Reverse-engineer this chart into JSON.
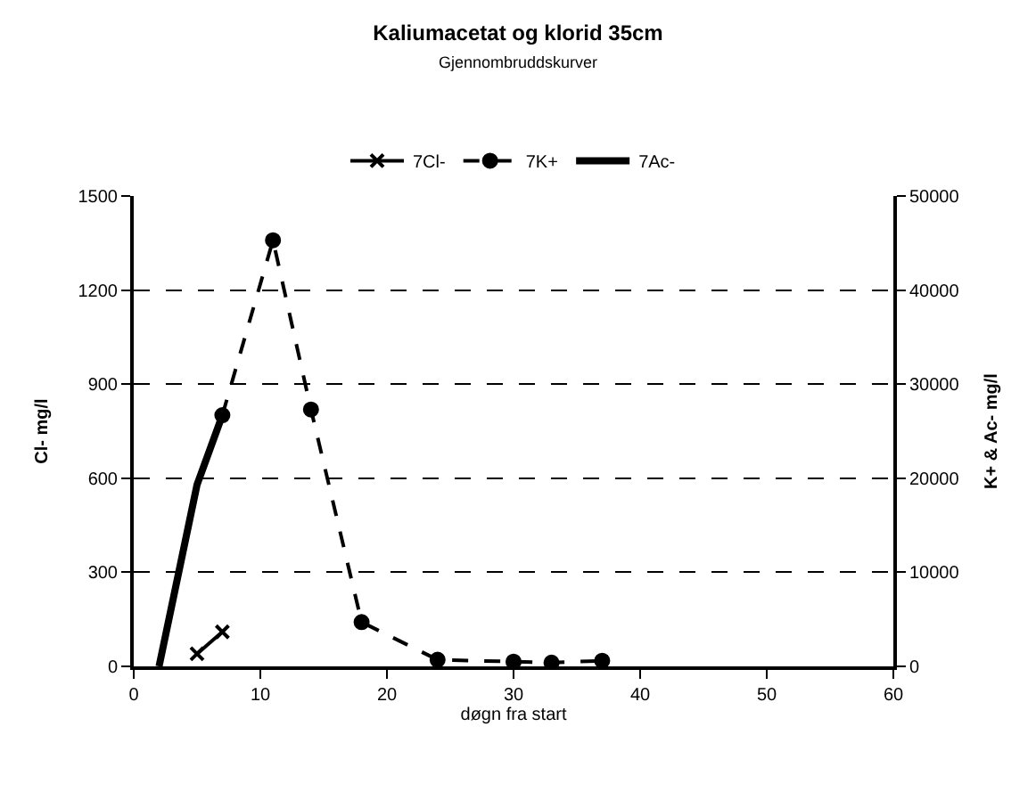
{
  "chart_data": {
    "type": "line",
    "title": "Kaliumacetat og klorid 35cm",
    "subtitle": "Gjennombruddskurver",
    "xlabel": "døgn fra start",
    "ylabel": "Cl- mg/l",
    "y2label": "K+ & Ac- mg/l",
    "xlim": [
      0,
      60
    ],
    "xticks": [
      0,
      10,
      20,
      30,
      40,
      50,
      60
    ],
    "ylim": [
      0,
      1500
    ],
    "yticks": [
      0,
      300,
      600,
      900,
      1200,
      1500
    ],
    "y2lim": [
      0,
      50000
    ],
    "y2ticks": [
      0,
      10000,
      20000,
      30000,
      40000,
      50000
    ],
    "grid": "y",
    "legend": "top",
    "series": [
      {
        "name": "7Cl-",
        "color": "#000000",
        "marker": "cross",
        "line_style": "solid",
        "x": [
          5,
          7
        ],
        "values": [
          40,
          110
        ]
      },
      {
        "name": "7K+",
        "color": "#000000",
        "marker": "circle",
        "line_style": "dashed",
        "axis": "y2",
        "x": [
          7,
          11,
          14,
          18,
          24,
          30,
          33,
          37
        ],
        "values": [
          26700,
          45300,
          27300,
          4700,
          700,
          500,
          400,
          600
        ]
      },
      {
        "name": "7Ac-",
        "color": "#000000",
        "marker": "none",
        "line_style": "solid",
        "axis": "y2",
        "x": [
          2,
          5,
          7
        ],
        "values": [
          0,
          19300,
          26700
        ]
      }
    ]
  }
}
